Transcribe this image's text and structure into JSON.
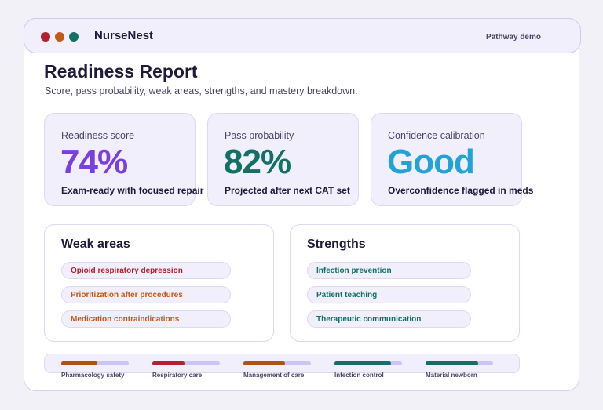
{
  "app": {
    "name": "NurseNest",
    "mode_label": "Pathway demo"
  },
  "window_controls": {
    "close_color": "#b3202f",
    "minimize_color": "#c25a14",
    "maximize_color": "#127065"
  },
  "page": {
    "title": "Readiness Report",
    "subtitle": "Score, pass probability, weak areas, strengths, and mastery breakdown."
  },
  "metrics": [
    {
      "label": "Readiness score",
      "value": "74%",
      "caption": "Exam-ready with focused repair",
      "color": "#7a3fe0"
    },
    {
      "label": "Pass probability",
      "value": "82%",
      "caption": "Projected after next CAT set",
      "color": "#127065"
    },
    {
      "label": "Confidence calibration",
      "value": "Good",
      "caption": "Overconfidence flagged in meds",
      "color": "#22a2d6"
    }
  ],
  "weak_areas": {
    "heading": "Weak areas",
    "items": [
      {
        "label": "Opioid respiratory depression",
        "color": "#b3202f"
      },
      {
        "label": "Prioritization after procedures",
        "color": "#c25a14"
      },
      {
        "label": "Medication contraindications",
        "color": "#c25a14"
      }
    ]
  },
  "strengths": {
    "heading": "Strengths",
    "items": [
      {
        "label": "Infection prevention",
        "color": "#127065"
      },
      {
        "label": "Patient teaching",
        "color": "#127065"
      },
      {
        "label": "Therapeutic communication",
        "color": "#127065"
      }
    ]
  },
  "mastery": [
    {
      "label": "Pharmacology safety",
      "level": 0.54,
      "color": "#b3520f"
    },
    {
      "label": "Respiratory care",
      "level": 0.48,
      "color": "#b3202f"
    },
    {
      "label": "Management of care",
      "level": 0.62,
      "color": "#b3520f"
    },
    {
      "label": "Infection control",
      "level": 0.84,
      "color": "#127065"
    },
    {
      "label": "Material newborn",
      "level": 0.78,
      "color": "#127065"
    }
  ]
}
